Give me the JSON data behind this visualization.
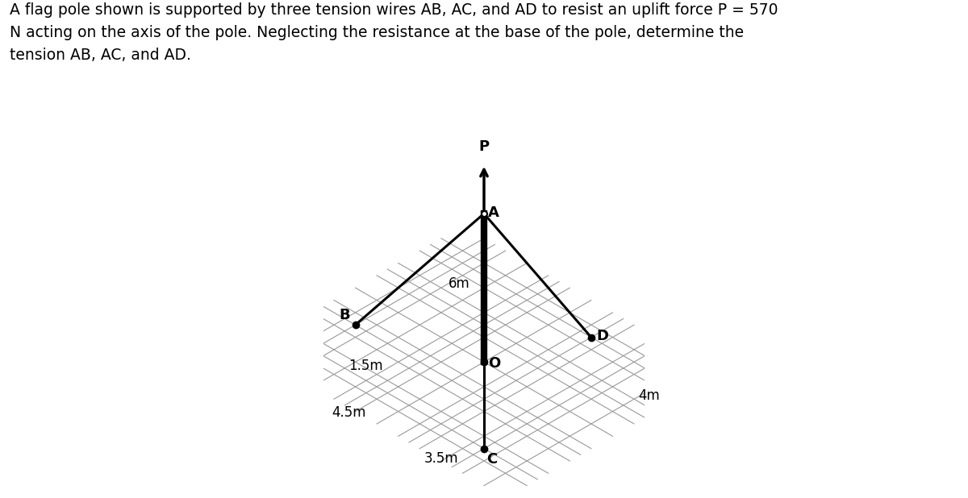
{
  "title_text": "A flag pole shown is supported by three tension wires AB, AC, and AD to resist an uplift force P = 570\nN acting on the axis of the pole. Neglecting the resistance at the base of the pole, determine the\ntension AB, AC, and AD.",
  "title_fontsize": 13.5,
  "bg_color": "#ffffff",
  "points_3d": {
    "O": [
      0,
      0,
      0
    ],
    "A": [
      0,
      0,
      6
    ],
    "B": [
      -4.5,
      1.5,
      0
    ],
    "C": [
      3.5,
      3.5,
      0
    ],
    "D": [
      1.5,
      -3.5,
      0
    ]
  }
}
